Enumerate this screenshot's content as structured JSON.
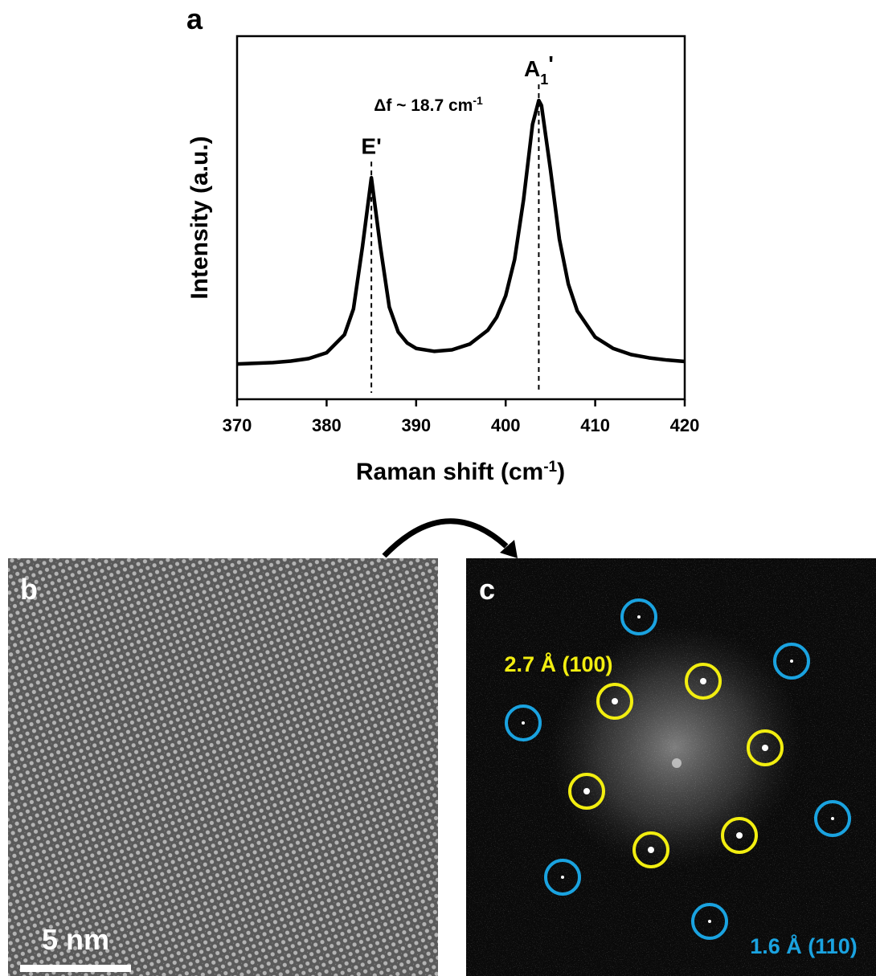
{
  "chart_data": {
    "type": "line",
    "panel_label": "a",
    "ylabel": "Intensity (a.u.)",
    "xlabel": {
      "text": "Raman shift (cm",
      "sup": "-1",
      "tail": ")"
    },
    "x": [
      370,
      372,
      374,
      376,
      378,
      380,
      382,
      383,
      384,
      385,
      386,
      387,
      388,
      389,
      390,
      392,
      394,
      396,
      398,
      399,
      400,
      401,
      402,
      403,
      403.7,
      404,
      405,
      406,
      407,
      408,
      410,
      412,
      414,
      416,
      418,
      420
    ],
    "values": [
      9.7,
      9.9,
      10.1,
      10.5,
      11.2,
      12.8,
      17.8,
      24.9,
      41.9,
      61,
      42.1,
      25.4,
      18.5,
      15.5,
      14,
      13.2,
      13.6,
      15.2,
      19,
      22.6,
      28.5,
      38.5,
      55,
      75.7,
      82.3,
      80.9,
      63.3,
      44.1,
      31.7,
      24.3,
      17.1,
      14,
      12.3,
      11.4,
      10.8,
      10.4
    ],
    "color": "#000000",
    "xlim": [
      370,
      420
    ],
    "xticks": [
      370,
      380,
      390,
      400,
      410,
      420
    ],
    "ylim": [
      0,
      100
    ],
    "peaks": [
      {
        "x": 385,
        "y": 61,
        "label": "E'"
      },
      {
        "x": 403.7,
        "y": 82.3,
        "label": "A",
        "sub": "1",
        "tail": "'"
      }
    ],
    "annotation": {
      "text": "Δf ~ 18.7 cm",
      "sup": "-1"
    }
  },
  "panel_b": {
    "label": "b",
    "scale_bar": "5 nm"
  },
  "panel_c": {
    "label": "c",
    "spot_labels": [
      "2.7 Å (100)",
      "1.6 Å (110)"
    ]
  }
}
